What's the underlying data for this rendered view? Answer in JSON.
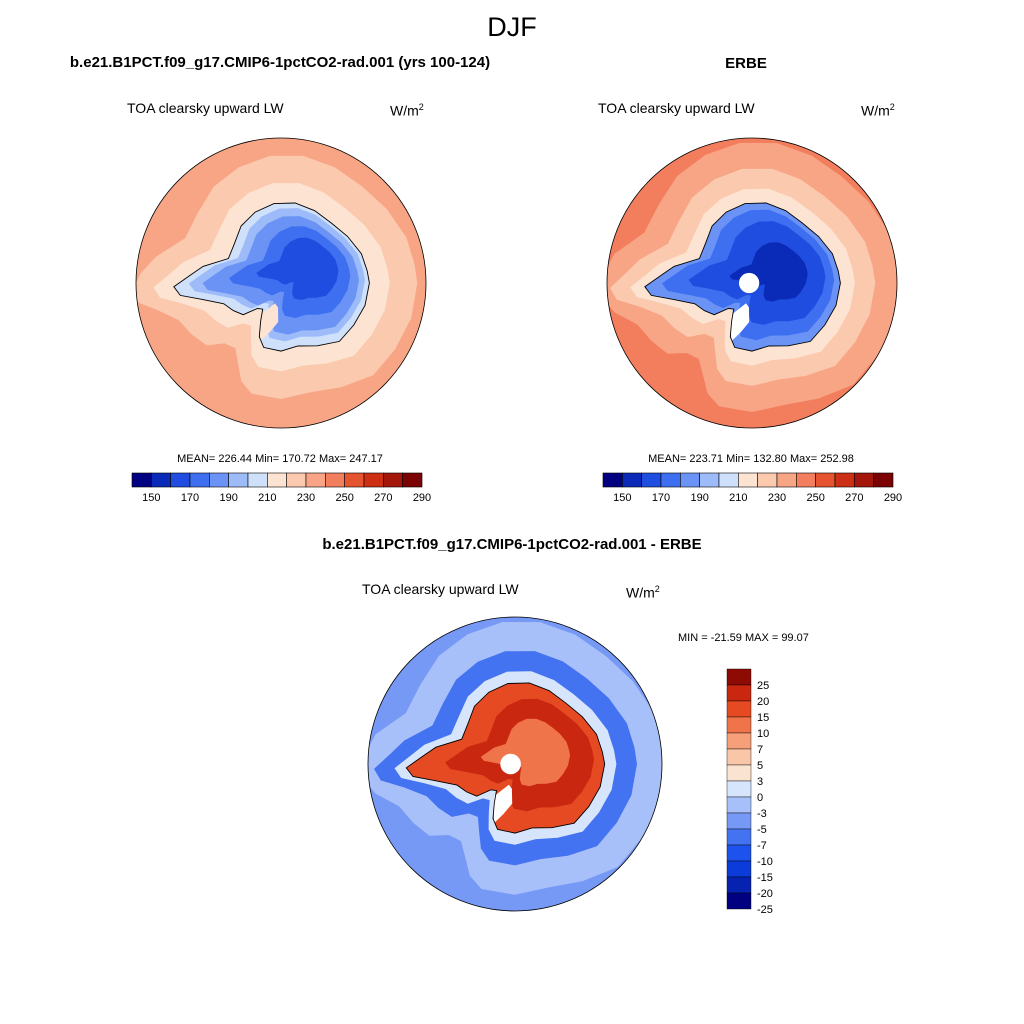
{
  "figure": {
    "title": "DJF"
  },
  "colors": {
    "full_palette": [
      "#000080",
      "#0a2bb7",
      "#1e4de0",
      "#3d6ff0",
      "#6a93f5",
      "#9cbbf8",
      "#cfe0fb",
      "#fde3d2",
      "#fbc9ae",
      "#f8a585",
      "#f27e5e",
      "#e5532f",
      "#cc2f13",
      "#a4160a",
      "#7a0403"
    ],
    "diff_palette": [
      "#000080",
      "#0523b0",
      "#0b3bd8",
      "#1d52ec",
      "#4473f2",
      "#7799f6",
      "#a8c0f9",
      "#d7e5fc",
      "#fbe3d2",
      "#fac6a8",
      "#f6a07a",
      "#f0744a",
      "#e54a22",
      "#c92710",
      "#8e0b04"
    ],
    "land_outline": "#000000",
    "missing": "#ffffff"
  },
  "panels": [
    {
      "id": "model",
      "title": "b.e21.B1PCT.f09_g17.CMIP6-1pctCO2-rad.001 (yrs 100-124)",
      "left_label": "TOA clearsky upward LW",
      "units_base": "W/m",
      "units_sup": "2",
      "stats": "MEAN= 226.44  Min= 170.72  Max= 247.17"
    },
    {
      "id": "obs",
      "title": "ERBE",
      "left_label": "TOA clearsky upward LW",
      "units_base": "W/m",
      "units_sup": "2",
      "stats": "MEAN= 223.71  Min= 132.80  Max= 252.98"
    },
    {
      "id": "diff",
      "title": "b.e21.B1PCT.f09_g17.CMIP6-1pctCO2-rad.001 - ERBE",
      "left_label": "TOA clearsky upward LW",
      "units_base": "W/m",
      "units_sup": "2",
      "stats": "MIN = -21.59 MAX =  99.07"
    }
  ],
  "chart_data": [
    {
      "type": "heatmap",
      "projection": "south-polar-stereographic",
      "title": "b.e21.B1PCT.f09_g17.CMIP6-1pctCO2-rad.001 (yrs 100-124)",
      "variable": "TOA clearsky upward LW",
      "units": "W/m2",
      "mean": 226.44,
      "min": 170.72,
      "max": 247.17,
      "colorbar": {
        "orientation": "horizontal",
        "levels": [
          150,
          160,
          170,
          180,
          190,
          200,
          210,
          220,
          230,
          240,
          250,
          260,
          270,
          280,
          290
        ],
        "tick_labels": [
          "150",
          "170",
          "190",
          "210",
          "230",
          "250",
          "270",
          "290"
        ]
      }
    },
    {
      "type": "heatmap",
      "projection": "south-polar-stereographic",
      "title": "ERBE",
      "variable": "TOA clearsky upward LW",
      "units": "W/m2",
      "mean": 223.71,
      "min": 132.8,
      "max": 252.98,
      "colorbar": {
        "orientation": "horizontal",
        "levels": [
          150,
          160,
          170,
          180,
          190,
          200,
          210,
          220,
          230,
          240,
          250,
          260,
          270,
          280,
          290
        ],
        "tick_labels": [
          "150",
          "170",
          "190",
          "210",
          "230",
          "250",
          "270",
          "290"
        ]
      }
    },
    {
      "type": "heatmap",
      "projection": "south-polar-stereographic",
      "title": "b.e21.B1PCT.f09_g17.CMIP6-1pctCO2-rad.001 - ERBE",
      "variable": "TOA clearsky upward LW",
      "units": "W/m2",
      "min": -21.59,
      "max": 99.07,
      "colorbar": {
        "orientation": "vertical",
        "levels": [
          -25,
          -20,
          -15,
          -10,
          -7,
          -5,
          -3,
          0,
          3,
          5,
          7,
          10,
          15,
          20,
          25
        ],
        "tick_labels": [
          "25",
          "20",
          "15",
          "10",
          "7",
          "5",
          "3",
          "0",
          "-3",
          "-5",
          "-7",
          "-10",
          "-15",
          "-20",
          "-25"
        ]
      }
    }
  ]
}
